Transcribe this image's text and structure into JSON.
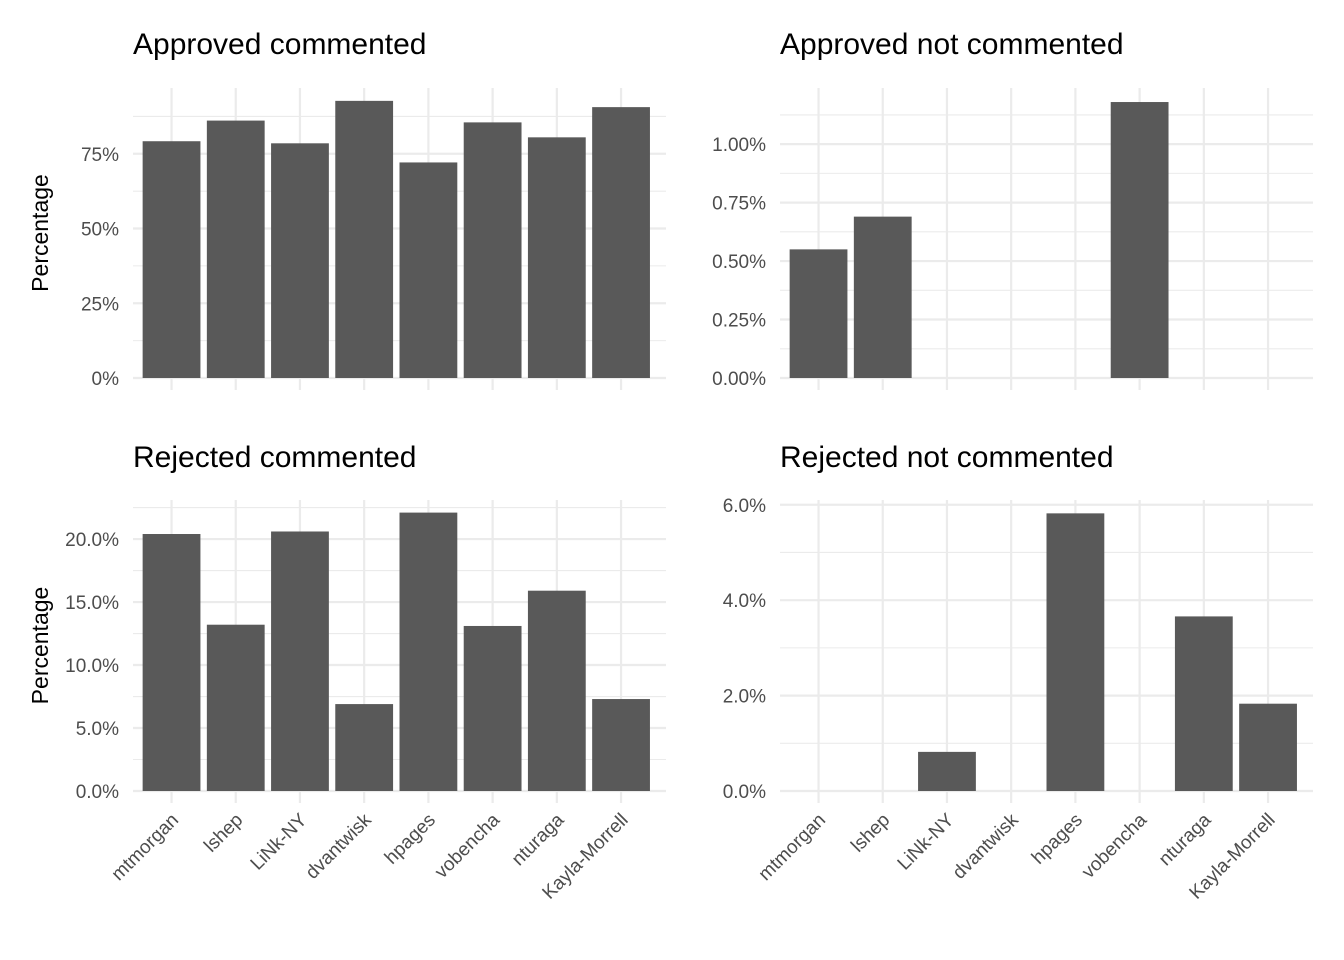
{
  "chart_data": [
    {
      "type": "bar",
      "title": "Approved commented",
      "ylabel": "Percentage",
      "categories": [
        "mtmorgan",
        "lshep",
        "LiNk-NY",
        "dvantwisk",
        "hpages",
        "vobencha",
        "nturaga",
        "Kayla-Morrell"
      ],
      "values": [
        79.2,
        86.1,
        78.5,
        92.7,
        72.1,
        85.5,
        80.5,
        90.6
      ],
      "ylim": [
        0,
        97
      ],
      "yticks": [
        0,
        25,
        50,
        75
      ],
      "ytick_labels": [
        "0%",
        "25%",
        "50%",
        "75%"
      ],
      "show_xlabels": false
    },
    {
      "type": "bar",
      "title": "Approved not commented",
      "ylabel": "",
      "categories": [
        "mtmorgan",
        "lshep",
        "LiNk-NY",
        "dvantwisk",
        "hpages",
        "vobencha",
        "nturaga",
        "Kayla-Morrell"
      ],
      "values": [
        0.55,
        0.69,
        0,
        0,
        0,
        1.18,
        0,
        0
      ],
      "ylim": [
        0,
        1.24
      ],
      "yticks": [
        0,
        0.25,
        0.5,
        0.75,
        1.0
      ],
      "ytick_labels": [
        "0.00%",
        "0.25%",
        "0.50%",
        "0.75%",
        "1.00%"
      ],
      "show_xlabels": false
    },
    {
      "type": "bar",
      "title": "Rejected commented",
      "ylabel": "Percentage",
      "categories": [
        "mtmorgan",
        "lshep",
        "LiNk-NY",
        "dvantwisk",
        "hpages",
        "vobencha",
        "nturaga",
        "Kayla-Morrell"
      ],
      "values": [
        20.4,
        13.2,
        20.6,
        6.9,
        22.1,
        13.1,
        15.9,
        7.3
      ],
      "ylim": [
        0,
        23.1
      ],
      "yticks": [
        0,
        5,
        10,
        15,
        20
      ],
      "ytick_labels": [
        "0.0%",
        "5.0%",
        "10.0%",
        "15.0%",
        "20.0%"
      ],
      "show_xlabels": true
    },
    {
      "type": "bar",
      "title": "Rejected not commented",
      "ylabel": "",
      "categories": [
        "mtmorgan",
        "lshep",
        "LiNk-NY",
        "dvantwisk",
        "hpages",
        "vobencha",
        "nturaga",
        "Kayla-Morrell"
      ],
      "values": [
        0,
        0,
        0.82,
        0,
        5.82,
        0,
        3.66,
        1.83
      ],
      "ylim": [
        0,
        6.1
      ],
      "yticks": [
        0,
        2,
        4,
        6
      ],
      "ytick_labels": [
        "0.0%",
        "2.0%",
        "4.0%",
        "6.0%"
      ],
      "show_xlabels": true
    }
  ],
  "colors": {
    "bar": "#595959",
    "grid": "#ebebeb",
    "tick_text": "#4d4d4d",
    "title_text": "#000000",
    "background": "#ffffff"
  }
}
